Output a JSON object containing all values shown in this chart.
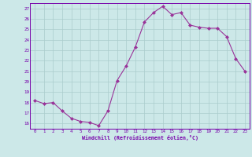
{
  "x": [
    0,
    1,
    2,
    3,
    4,
    5,
    6,
    7,
    8,
    9,
    10,
    11,
    12,
    13,
    14,
    15,
    16,
    17,
    18,
    19,
    20,
    21,
    22,
    23
  ],
  "y": [
    18.2,
    17.9,
    18.0,
    17.2,
    16.5,
    16.2,
    16.1,
    15.8,
    17.2,
    20.1,
    21.5,
    23.3,
    25.7,
    26.6,
    27.2,
    26.4,
    26.6,
    25.4,
    25.2,
    25.1,
    25.1,
    24.3,
    22.2,
    21.0
  ],
  "line_color": "#993399",
  "marker": "D",
  "marker_size": 2,
  "bg_color": "#cce8e8",
  "grid_color": "#aacccc",
  "xlabel": "Windchill (Refroidissement éolien,°C)",
  "xlabel_color": "#7700aa",
  "tick_color": "#7700aa",
  "ylim": [
    15.5,
    27.5
  ],
  "yticks": [
    16,
    17,
    18,
    19,
    20,
    21,
    22,
    23,
    24,
    25,
    26,
    27
  ],
  "xticks": [
    0,
    1,
    2,
    3,
    4,
    5,
    6,
    7,
    8,
    9,
    10,
    11,
    12,
    13,
    14,
    15,
    16,
    17,
    18,
    19,
    20,
    21,
    22,
    23
  ],
  "xlim": [
    -0.5,
    23.5
  ],
  "spine_color": "#7700aa"
}
